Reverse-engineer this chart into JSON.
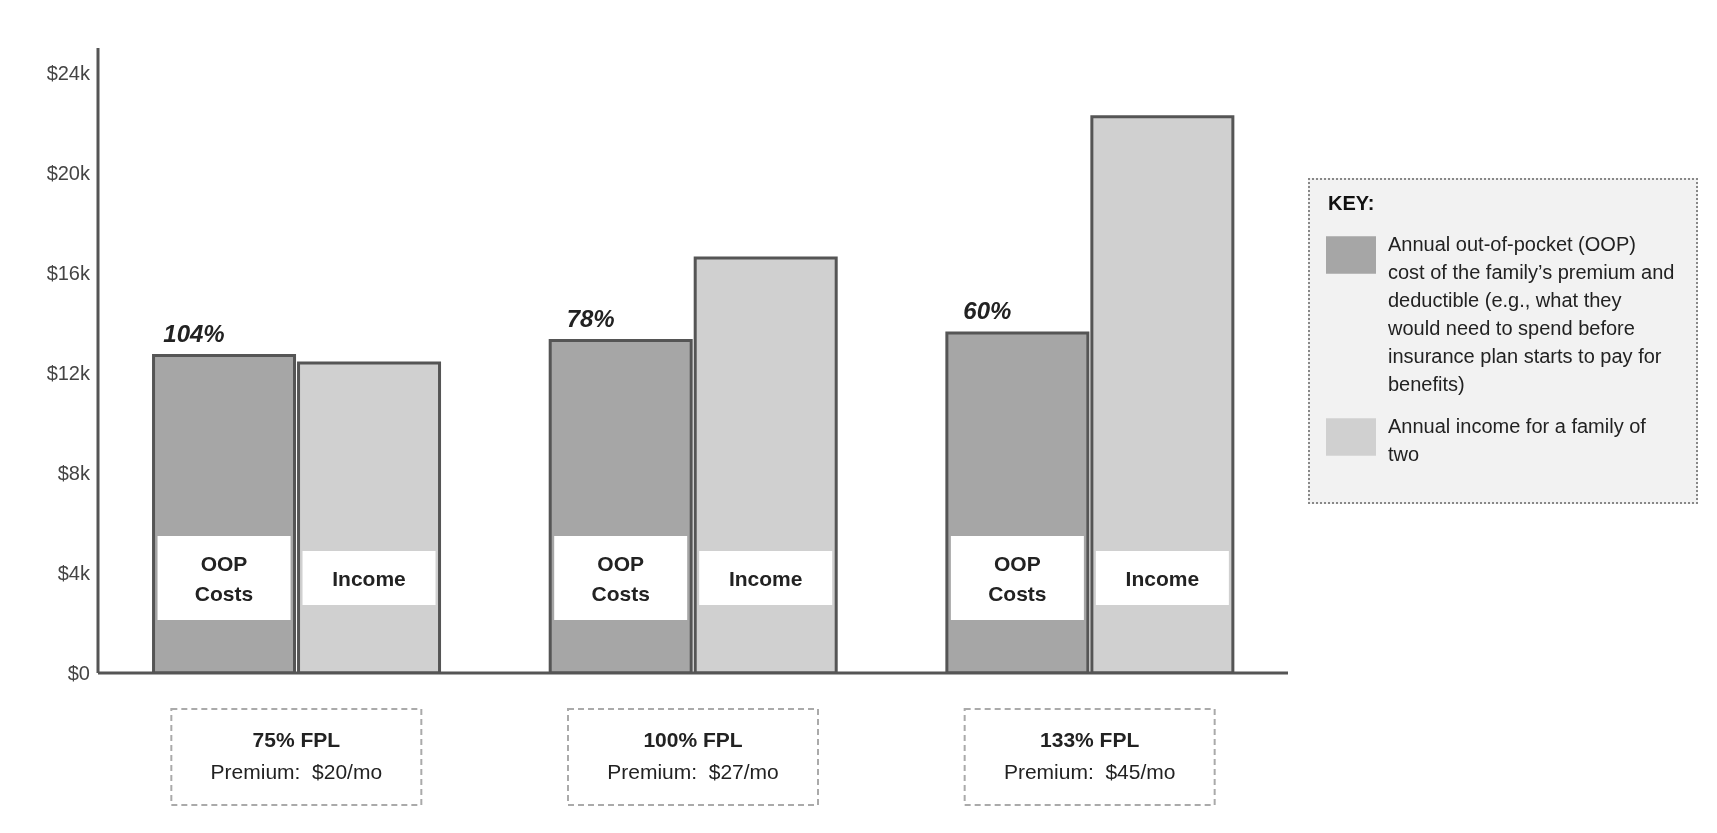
{
  "chart_data": {
    "type": "bar",
    "categories": [
      "75% FPL\nPremium:  $20/mo",
      "100% FPL\nPremium:  $27/mo",
      "133% FPL\nPremium:  $45/mo"
    ],
    "series": [
      {
        "name": "Annual out-of-pocket (OOP) cost of the family’s premium and deductible (e.g., what they would need to spend before insurance plan starts to pay for benefits)",
        "color": "#a6a6a6",
        "values": [
          12700,
          13300,
          13600
        ]
      },
      {
        "name": "Annual income for a family of two",
        "color": "#d0d0d0",
        "values": [
          12400,
          16600,
          22250
        ]
      }
    ],
    "ylim": [
      0,
      25000
    ],
    "yticks": [
      {
        "value": 0,
        "label": "$0"
      },
      {
        "value": 4000,
        "label": "$4k"
      },
      {
        "value": 8000,
        "label": "$8k"
      },
      {
        "value": 12000,
        "label": "$12k"
      },
      {
        "value": 16000,
        "label": "$16k"
      },
      {
        "value": 20000,
        "label": "$20k"
      },
      {
        "value": 24000,
        "label": "$24k"
      }
    ],
    "legend_title": "KEY:",
    "legend": "right",
    "grid": false,
    "annotations": [
      "104%",
      "78%",
      "60%",
      {
        "text": "OOP Costs",
        "x": "75% FPL\nPremium:  $20/mo",
        "y": 3800
      },
      {
        "text": "Income",
        "x": "75% FPL\nPremium:  $20/mo",
        "y": 3800
      },
      {
        "text": "OOP Costs",
        "x": "100% FPL\nPremium:  $27/mo",
        "y": 3800
      },
      {
        "text": "Income",
        "x": "100% FPL\nPremium:  $27/mo",
        "y": 3800
      },
      {
        "text": "OOP Costs",
        "x": "133% FPL\nPremium:  $45/mo",
        "y": 3800
      },
      {
        "text": "Income",
        "x": "133% FPL\nPremium:  $45/mo",
        "y": 3800
      }
    ]
  }
}
